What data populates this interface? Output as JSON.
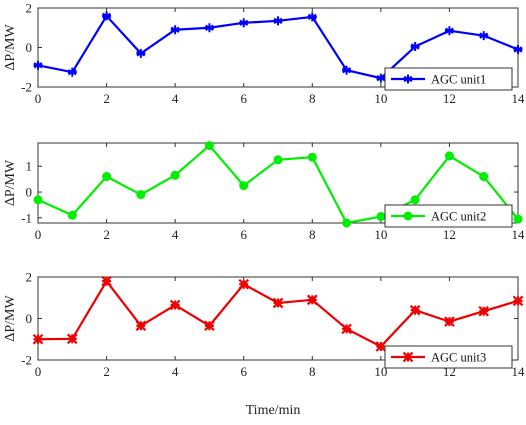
{
  "chart_data": [
    {
      "type": "line",
      "x": [
        0,
        1,
        2,
        3,
        4,
        5,
        6,
        7,
        8,
        9,
        10,
        11,
        12,
        13,
        14
      ],
      "series": [
        {
          "name": "AGC unit1",
          "color": "#0000ff",
          "marker": "asterisk",
          "values": [
            -0.9,
            -1.25,
            1.6,
            -0.3,
            0.9,
            1.0,
            1.25,
            1.35,
            1.55,
            -1.15,
            -1.55,
            0.05,
            0.85,
            0.6,
            -0.1
          ]
        }
      ],
      "xlim": [
        0,
        14
      ],
      "ylim": [
        -2,
        2
      ],
      "xticks": [
        "0",
        "2",
        "4",
        "6",
        "8",
        "10",
        "12",
        "14"
      ],
      "yticks": [
        "-2",
        "0",
        "2"
      ],
      "ylabel": "ΔP/MW",
      "legend": "bottom-right"
    },
    {
      "type": "line",
      "x": [
        0,
        1,
        2,
        3,
        4,
        5,
        6,
        7,
        8,
        9,
        10,
        11,
        12,
        13,
        14
      ],
      "series": [
        {
          "name": "AGC unit2",
          "color": "#00ee00",
          "marker": "circle",
          "values": [
            -0.3,
            -0.9,
            0.6,
            -0.1,
            0.65,
            1.8,
            0.25,
            1.25,
            1.35,
            -1.2,
            -0.95,
            -0.3,
            1.4,
            0.6,
            -1.05
          ]
        }
      ],
      "xlim": [
        0,
        14
      ],
      "ylim": [
        -1.2,
        1.9
      ],
      "xticks": [
        "0",
        "2",
        "4",
        "6",
        "8",
        "10",
        "12",
        "14"
      ],
      "yticks": [
        "-1",
        "0",
        "1"
      ],
      "ylabel": "ΔP/MW",
      "legend": "bottom-right"
    },
    {
      "type": "line",
      "x": [
        0,
        1,
        2,
        3,
        4,
        5,
        6,
        7,
        8,
        9,
        10,
        11,
        12,
        13,
        14
      ],
      "series": [
        {
          "name": "AGC unit3",
          "color": "#ee0000",
          "marker": "star",
          "values": [
            -1.0,
            -0.98,
            1.8,
            -0.35,
            0.65,
            -0.35,
            1.65,
            0.75,
            0.9,
            -0.5,
            -1.35,
            0.4,
            -0.15,
            0.35,
            0.85
          ]
        }
      ],
      "xlim": [
        0,
        14
      ],
      "ylim": [
        -2,
        2
      ],
      "xticks": [
        "0",
        "2",
        "4",
        "6",
        "8",
        "10",
        "12",
        "14"
      ],
      "yticks": [
        "-2",
        "0",
        "2"
      ],
      "ylabel": "ΔP/MW",
      "legend": "bottom-right"
    }
  ],
  "xlabel": "Time/min"
}
